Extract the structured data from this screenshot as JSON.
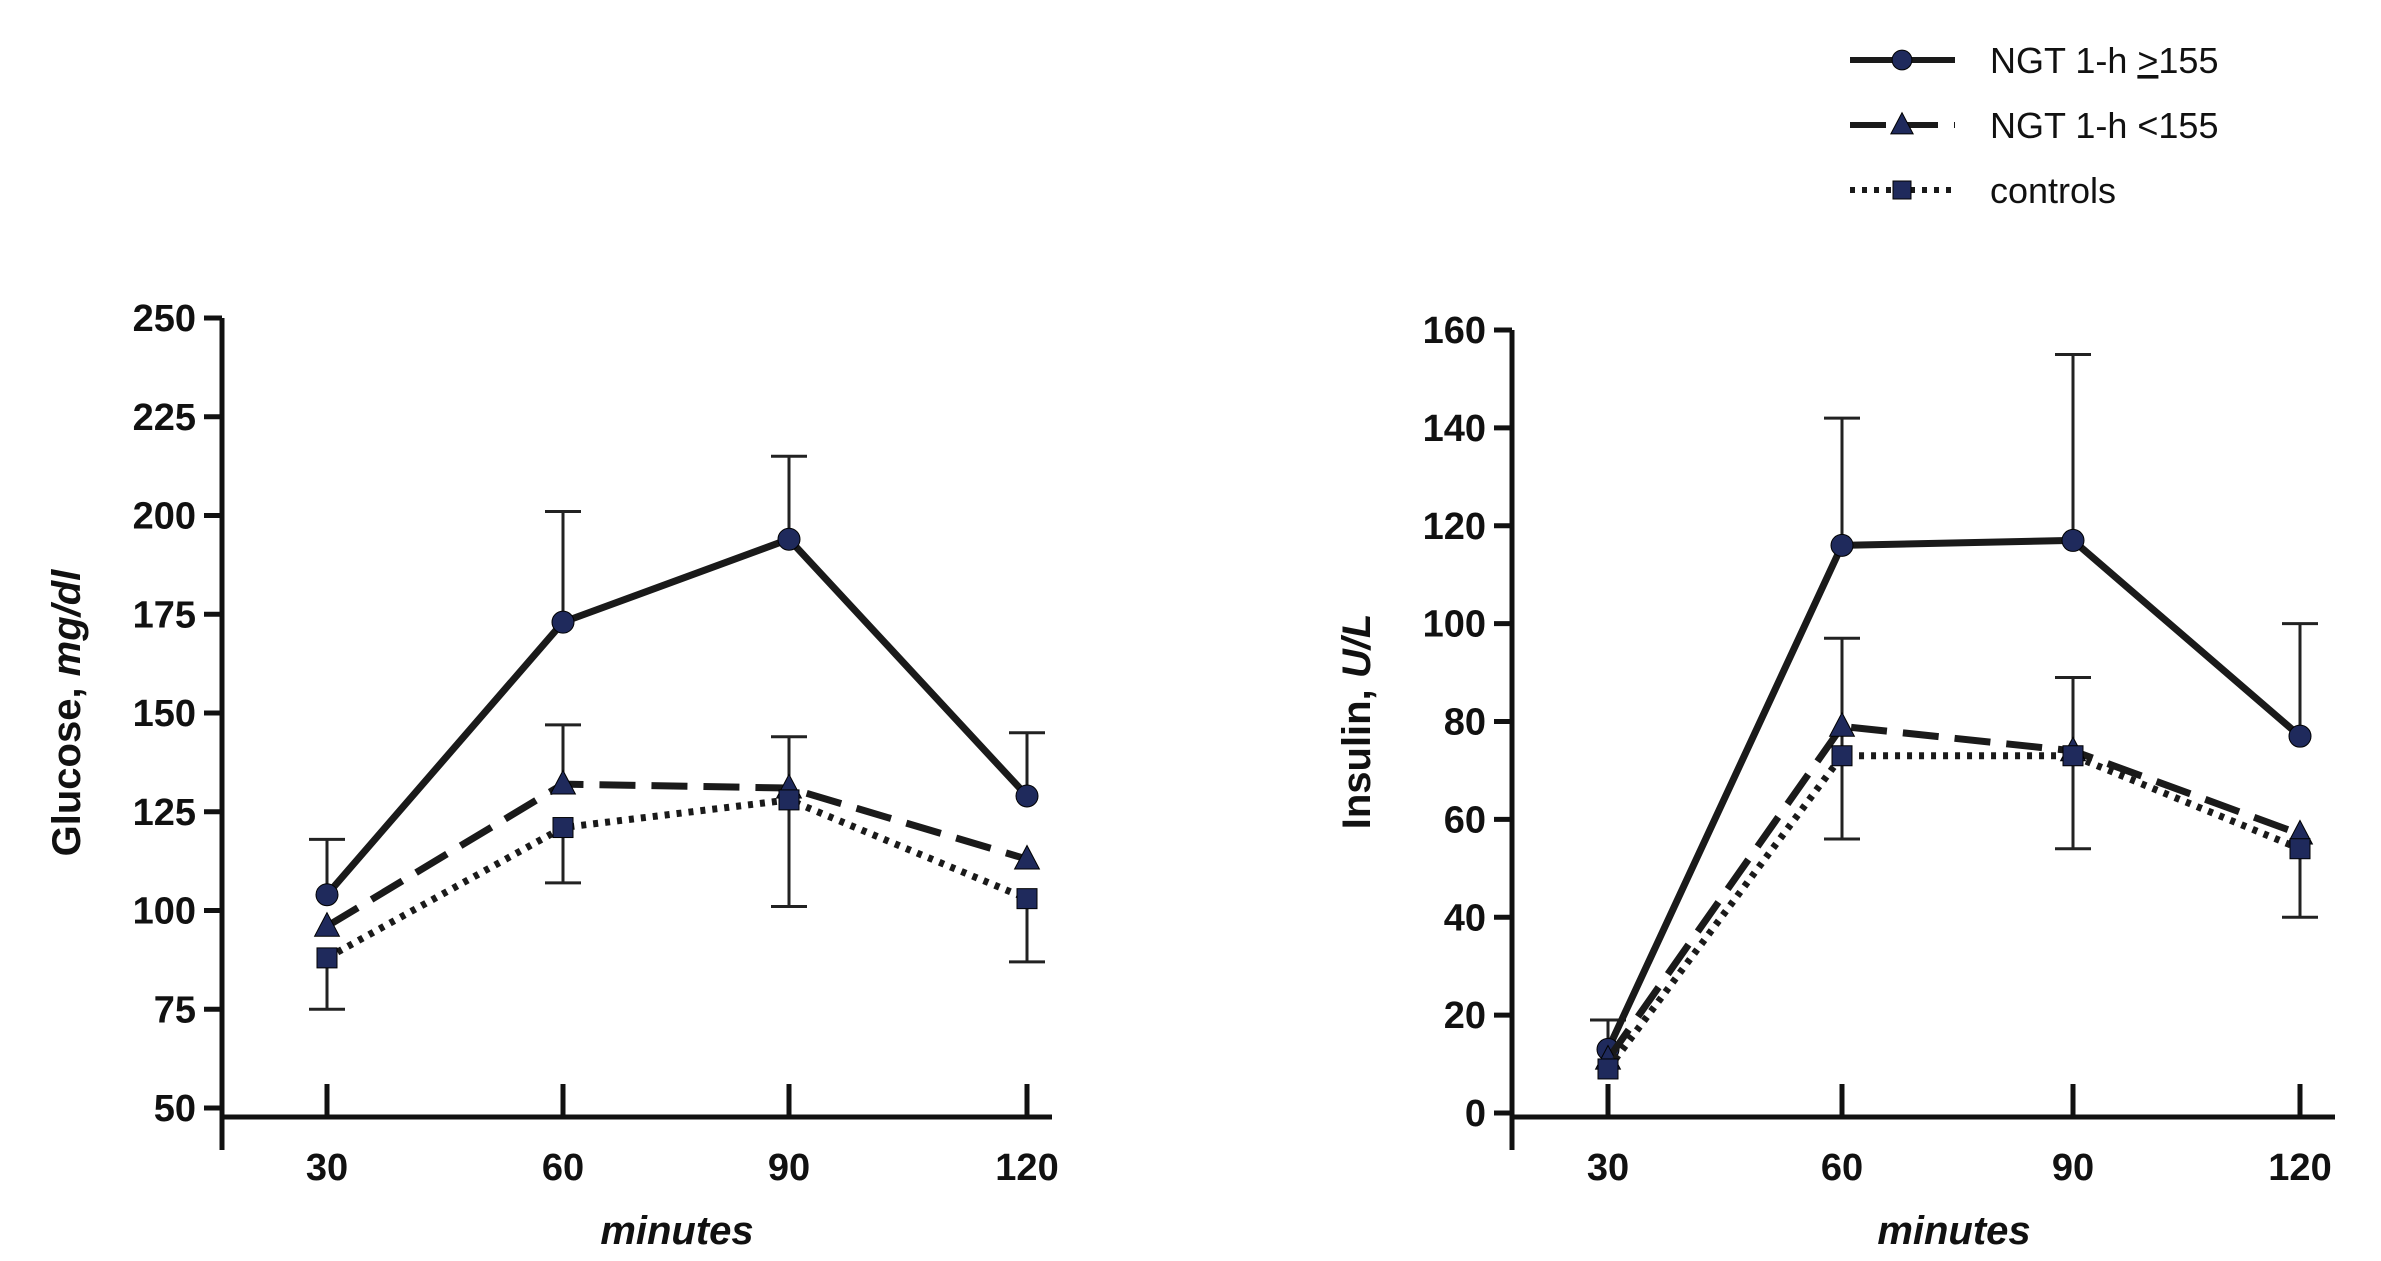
{
  "legend": {
    "position": "top-right",
    "entries": [
      {
        "label": "NGT 1-h ",
        "label_ul": ">",
        "label_suffix": "155",
        "line": "solid",
        "marker": "circle"
      },
      {
        "label": "NGT 1-h <155",
        "label_ul": "",
        "label_suffix": "",
        "line": "dashed",
        "marker": "triangle"
      },
      {
        "label": "controls",
        "label_ul": "",
        "label_suffix": "",
        "line": "dotted",
        "marker": "square"
      }
    ]
  },
  "colors": {
    "axis": "#111111",
    "line": "#1a1a1a",
    "marker": "#1f2a5c"
  },
  "chart_data": [
    {
      "type": "line",
      "title": "",
      "ylabel_main": "Glucose, ",
      "ylabel_unit": "mg/dl",
      "xlabel": "minutes",
      "ylim": [
        50,
        250
      ],
      "yticks": [
        50,
        75,
        100,
        125,
        150,
        175,
        200,
        225,
        250
      ],
      "ytick_labels": [
        "50",
        "75",
        "100",
        "125",
        "150",
        "175",
        "200",
        "225",
        "250"
      ],
      "x": [
        30,
        60,
        90,
        120
      ],
      "xtick_labels": [
        "30",
        "60",
        "90",
        "120"
      ],
      "grid": false,
      "series": [
        {
          "name": "NGT 1-h >155",
          "values": [
            104,
            173,
            194,
            129
          ],
          "err_upper": [
            118,
            201,
            215,
            145
          ],
          "err_lower": [
            null,
            null,
            null,
            null
          ]
        },
        {
          "name": "NGT 1-h <155",
          "values": [
            96,
            132,
            131,
            113
          ],
          "err_upper": [
            null,
            147,
            144,
            null
          ],
          "err_lower": [
            null,
            null,
            null,
            null
          ]
        },
        {
          "name": "controls",
          "values": [
            88,
            121,
            128,
            103
          ],
          "err_upper": [
            null,
            null,
            null,
            null
          ],
          "err_lower": [
            75,
            107,
            101,
            87
          ]
        }
      ]
    },
    {
      "type": "line",
      "title": "",
      "ylabel_main": "Insulin, ",
      "ylabel_unit": "U/L",
      "xlabel": "minutes",
      "ylim": [
        0,
        160
      ],
      "yticks": [
        0,
        20,
        40,
        60,
        80,
        100,
        120,
        140,
        160
      ],
      "ytick_labels": [
        "0",
        "20",
        "40",
        "60",
        "80",
        "100",
        "120",
        "140",
        "160"
      ],
      "x": [
        30,
        60,
        90,
        120
      ],
      "xtick_labels": [
        "30",
        "60",
        "90",
        "120"
      ],
      "grid": false,
      "series": [
        {
          "name": "NGT 1-h >155",
          "values": [
            13,
            116,
            117,
            77
          ],
          "err_upper": [
            19,
            142,
            155,
            100
          ],
          "err_lower": [
            null,
            null,
            null,
            null
          ]
        },
        {
          "name": "NGT 1-h <155",
          "values": [
            11,
            79,
            74,
            57
          ],
          "err_upper": [
            null,
            97,
            89,
            null
          ],
          "err_lower": [
            null,
            56,
            54,
            40
          ]
        },
        {
          "name": "controls",
          "values": [
            9,
            73,
            73,
            54
          ],
          "err_upper": [
            null,
            null,
            null,
            null
          ],
          "err_lower": [
            null,
            null,
            null,
            null
          ]
        }
      ]
    }
  ]
}
